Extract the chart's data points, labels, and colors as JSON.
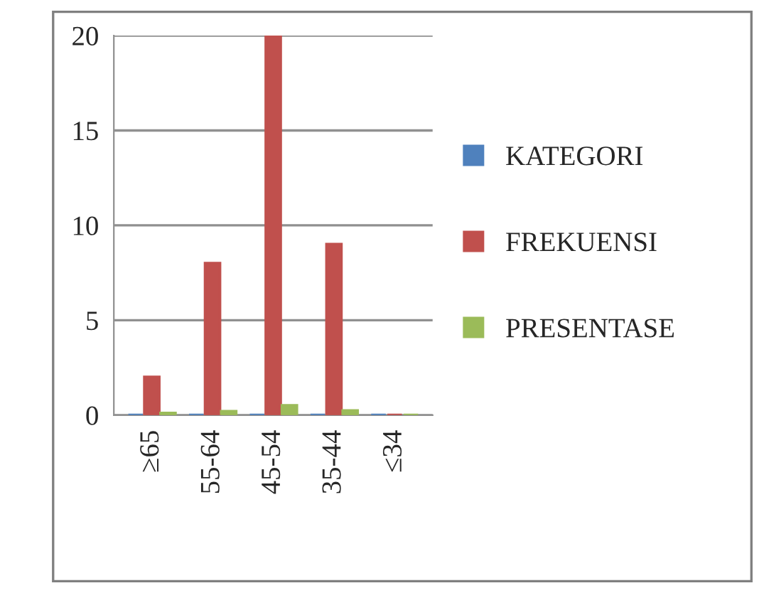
{
  "chart_data": {
    "type": "bar",
    "categories": [
      "≥65",
      "55-64",
      "45-54",
      "35-44",
      "≤34"
    ],
    "series": [
      {
        "name": "KATEGORI",
        "color": "#4f81bd",
        "values": [
          0,
          0,
          0,
          0,
          0
        ]
      },
      {
        "name": "FREKUENSI",
        "color": "#c0504d",
        "values": [
          2,
          8,
          20,
          9,
          0
        ]
      },
      {
        "name": "PRESENTASE",
        "color": "#9bbb59",
        "values": [
          0.1,
          0.2,
          0.5,
          0.23,
          0
        ]
      }
    ],
    "ylim": [
      0,
      20
    ],
    "yticks": [
      0,
      5,
      10,
      15,
      20
    ],
    "grid": "y",
    "legend": "right"
  }
}
